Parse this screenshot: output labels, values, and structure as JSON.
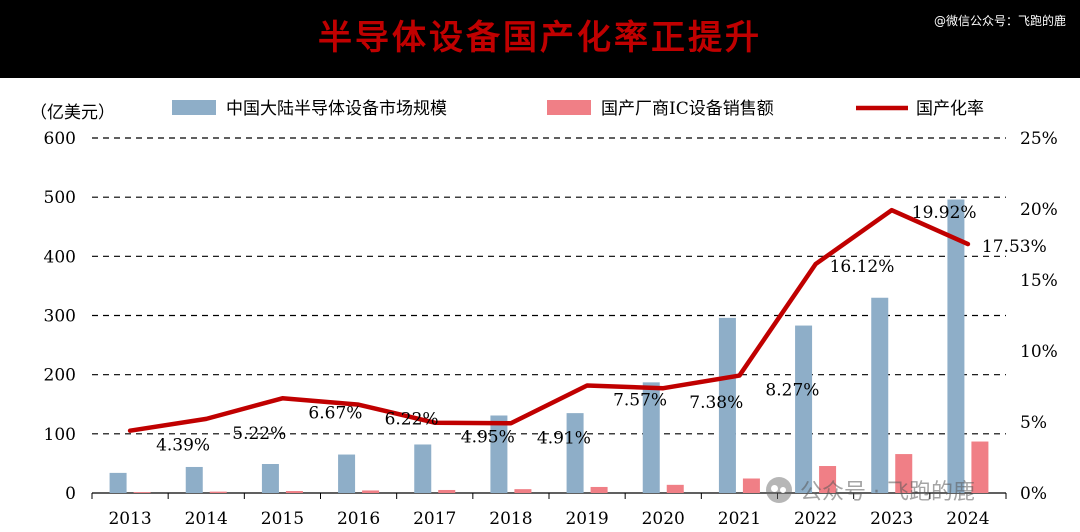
{
  "header": {
    "title": "半导体设备国产化率正提升",
    "credit": "@微信公众号：飞跑的鹿"
  },
  "watermark": {
    "text": "公众号 · 飞跑的鹿"
  },
  "colors": {
    "bar_market": "#8eaec8",
    "bar_domestic": "#f07f86",
    "line_rate": "#c00000",
    "header_bg": "#000000"
  },
  "chart_data": {
    "type": "bar",
    "unit_label": "（亿美元）",
    "categories": [
      "2013",
      "2014",
      "2015",
      "2016",
      "2017",
      "2018",
      "2019",
      "2020",
      "2021",
      "2022",
      "2023",
      "2024"
    ],
    "series": [
      {
        "name": "中国大陆半导体设备市场规模",
        "type": "bar",
        "axis": "left",
        "values": [
          34,
          44,
          49,
          65,
          82,
          131,
          135,
          187,
          296,
          283,
          330,
          496
        ]
      },
      {
        "name": "国产厂商IC设备销售额",
        "type": "bar",
        "axis": "left",
        "values": [
          1.5,
          2.3,
          3.3,
          4.3,
          5.1,
          6.5,
          10.2,
          13.8,
          24.5,
          45.6,
          65.8,
          87.0
        ]
      },
      {
        "name": "国产化率",
        "type": "line",
        "axis": "right",
        "values": [
          4.39,
          5.22,
          6.67,
          6.22,
          4.95,
          4.91,
          7.57,
          7.38,
          8.27,
          16.12,
          19.92,
          17.53
        ],
        "labels": [
          "4.39%",
          "5.22%",
          "6.67%",
          "6.22%",
          "4.95%",
          "4.91%",
          "7.57%",
          "7.38%",
          "8.27%",
          "16.12%",
          "19.92%",
          "17.53%"
        ]
      }
    ],
    "y_left": {
      "min": 0,
      "max": 600,
      "ticks": [
        "0",
        "100",
        "200",
        "300",
        "400",
        "500",
        "600"
      ]
    },
    "y_right": {
      "min": 0,
      "max": 25,
      "ticks": [
        "0%",
        "5%",
        "10%",
        "15%",
        "20%",
        "25%"
      ]
    },
    "grid": "dashed-horizontal",
    "legend_position": "top"
  }
}
